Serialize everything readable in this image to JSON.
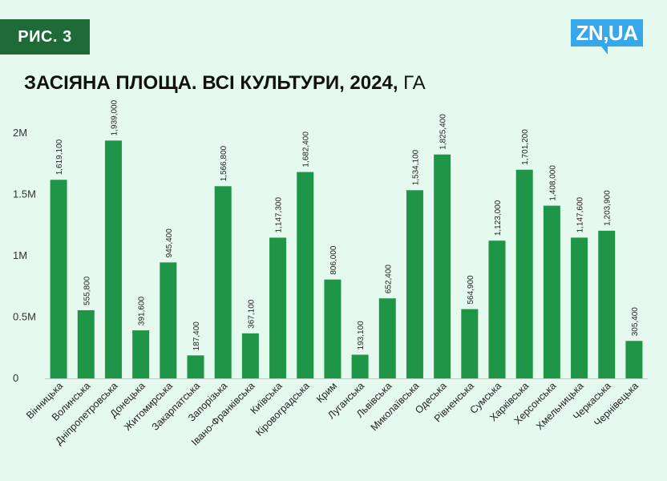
{
  "badge": "РИС. 3",
  "logo": "ZN,UA",
  "title_main": "ЗАСІЯНА ПЛОЩА. ВСІ КУЛЬТУРИ, 2024,",
  "title_unit": "ГА",
  "colors": {
    "bar": "#1e9547",
    "background": "#e6f9ef",
    "badge": "#1e6b37",
    "logo": "#35a7ea"
  },
  "chart_data": {
    "type": "bar",
    "title": "ЗАСІЯНА ПЛОЩА. ВСІ КУЛЬТУРИ, 2024, ГА",
    "xlabel": "",
    "ylabel": "",
    "ylim": [
      0,
      2000000
    ],
    "grid": false,
    "yticks": [
      {
        "value": 0,
        "label": "0"
      },
      {
        "value": 500000,
        "label": "0.5M"
      },
      {
        "value": 1000000,
        "label": "1M"
      },
      {
        "value": 1500000,
        "label": "1.5M"
      },
      {
        "value": 2000000,
        "label": "2M"
      }
    ],
    "categories": [
      "Вінницька",
      "Волинська",
      "Дніпропетровська",
      "Донецька",
      "Житомирська",
      "Закарпатська",
      "Запорізька",
      "Івано-Франківська",
      "Київська",
      "Кіровоградська",
      "Крим",
      "Луганська",
      "Львівська",
      "Миколаївська",
      "Одеська",
      "Рівненська",
      "Сумська",
      "Харківська",
      "Херсонська",
      "Хмельницька",
      "Черкаська",
      "Чернівецька"
    ],
    "values": [
      1619100,
      555800,
      1939000,
      391600,
      945400,
      187400,
      1566800,
      367100,
      1147300,
      1682400,
      806000,
      193100,
      652400,
      1534100,
      1825400,
      564900,
      1123000,
      1701200,
      1408000,
      1147600,
      1203900,
      305400
    ],
    "value_labels": [
      "1,619,100",
      "555,800",
      "1,939,000",
      "391,600",
      "945,400",
      "187,400",
      "1,566,800",
      "367,100",
      "1,147,300",
      "1,682,400",
      "806,000",
      "193,100",
      "652,400",
      "1,534,100",
      "1,825,400",
      "564,900",
      "1,123,000",
      "1,701,200",
      "1,408,000",
      "1,147,600",
      "1,203,900",
      "305,400"
    ]
  }
}
